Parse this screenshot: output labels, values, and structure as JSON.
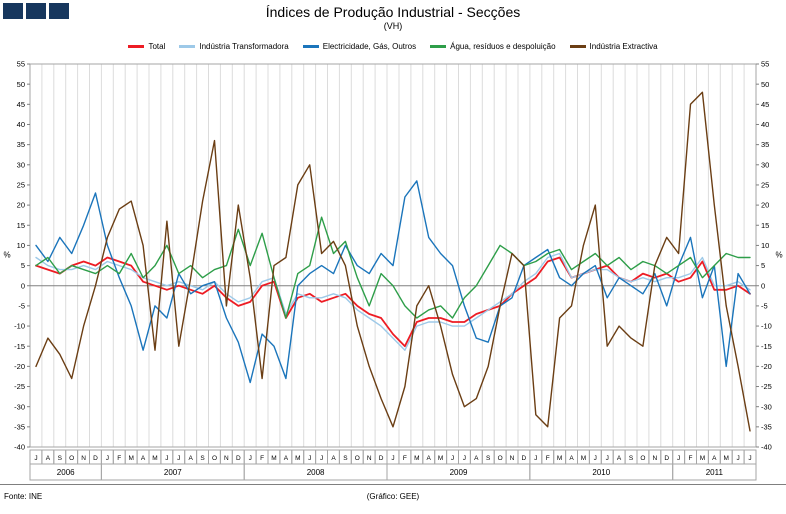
{
  "header": {
    "title": "Índices de Produção Industrial - Secções",
    "subtitle": "(VH)",
    "logo_color": "#17375e"
  },
  "footer": {
    "source": "Fonte: INE",
    "credit": "(Gráfico: GEE)"
  },
  "chart_data": {
    "type": "line",
    "title": "Índices de Produção Industrial - Secções",
    "subtitle": "(VH)",
    "ylabel_left": "%",
    "ylabel_right": "%",
    "ylim": [
      -40,
      55
    ],
    "ytick_step": 5,
    "grid": "vertical-monthly",
    "legend_position": "top",
    "month_labels": [
      "J",
      "A",
      "S",
      "O",
      "N",
      "D",
      "J",
      "F",
      "M",
      "A",
      "M",
      "J",
      "J",
      "A",
      "S",
      "O",
      "N",
      "D",
      "J",
      "F",
      "M",
      "A",
      "M",
      "J",
      "J",
      "A",
      "S",
      "O",
      "N",
      "D",
      "J",
      "F",
      "M",
      "A",
      "M",
      "J",
      "J",
      "A",
      "S",
      "O",
      "N",
      "D",
      "J",
      "F",
      "M",
      "A",
      "M",
      "J",
      "J",
      "A",
      "S",
      "O",
      "N",
      "D",
      "J",
      "F",
      "M",
      "A",
      "M",
      "J",
      "J"
    ],
    "year_groups": [
      {
        "label": "2006",
        "start": 0,
        "count": 6
      },
      {
        "label": "2007",
        "start": 6,
        "count": 12
      },
      {
        "label": "2008",
        "start": 18,
        "count": 12
      },
      {
        "label": "2009",
        "start": 30,
        "count": 12
      },
      {
        "label": "2010",
        "start": 42,
        "count": 12
      },
      {
        "label": "2011",
        "start": 54,
        "count": 7
      }
    ],
    "series": [
      {
        "name": "Total",
        "color": "#ed1c24",
        "values": [
          5,
          4,
          3,
          5,
          6,
          5,
          7,
          6,
          5,
          1,
          0,
          -1,
          0,
          -1,
          -2,
          0,
          -3,
          -5,
          -4,
          0,
          1,
          -8,
          -3,
          -2,
          -4,
          -3,
          -2,
          -5,
          -7,
          -8,
          -12,
          -15,
          -9,
          -8,
          -8,
          -9,
          -9,
          -7,
          -6,
          -5,
          -2,
          0,
          2,
          6,
          7,
          2,
          3,
          4,
          5,
          2,
          1,
          3,
          2,
          3,
          1,
          2,
          6,
          -1,
          -1,
          0,
          -2
        ]
      },
      {
        "name": "Indústria Transformadora",
        "color": "#9dc9e8",
        "values": [
          7,
          5,
          4,
          4,
          5,
          4,
          6,
          5,
          4,
          2,
          1,
          0,
          1,
          0,
          -1,
          1,
          -2,
          -4,
          -3,
          1,
          2,
          -7,
          -2,
          -3,
          -3,
          -2,
          -3,
          -6,
          -8,
          -10,
          -13,
          -16,
          -10,
          -9,
          -9,
          -10,
          -10,
          -8,
          -6,
          -4,
          -2,
          1,
          3,
          7,
          8,
          2,
          3,
          4,
          4,
          2,
          1,
          2,
          1,
          2,
          2,
          3,
          7,
          0,
          0,
          1,
          -1
        ]
      },
      {
        "name": "Electricidade, Gás, Outros",
        "color": "#1b75bb",
        "values": [
          10,
          6,
          12,
          8,
          15,
          23,
          10,
          2,
          -5,
          -16,
          -5,
          -8,
          3,
          -2,
          0,
          1,
          -8,
          -14,
          -24,
          -12,
          -15,
          -23,
          0,
          3,
          5,
          3,
          10,
          5,
          3,
          8,
          5,
          22,
          26,
          12,
          8,
          5,
          -5,
          -13,
          -14,
          -5,
          -3,
          5,
          7,
          9,
          2,
          0,
          3,
          5,
          -3,
          2,
          0,
          -2,
          3,
          -5,
          5,
          12,
          -3,
          5,
          -20,
          3,
          -2
        ]
      },
      {
        "name": "Água, resíduos e despoluição",
        "color": "#2e9e49",
        "values": [
          5,
          7,
          3,
          5,
          4,
          3,
          5,
          3,
          8,
          2,
          5,
          10,
          3,
          5,
          2,
          4,
          5,
          14,
          5,
          13,
          2,
          -8,
          3,
          5,
          17,
          8,
          11,
          2,
          -5,
          3,
          0,
          -5,
          -8,
          -6,
          -5,
          -8,
          -3,
          0,
          5,
          10,
          8,
          5,
          6,
          8,
          9,
          4,
          6,
          8,
          5,
          7,
          4,
          6,
          5,
          3,
          5,
          7,
          2,
          5,
          8,
          7,
          7
        ]
      },
      {
        "name": "Indústria Extractiva",
        "color": "#6b3e14",
        "values": [
          -20,
          -13,
          -17,
          -23,
          -10,
          0,
          12,
          19,
          21,
          10,
          -16,
          16,
          -15,
          2,
          21,
          36,
          -5,
          20,
          2,
          -23,
          5,
          7,
          25,
          30,
          8,
          11,
          5,
          -10,
          -20,
          -28,
          -35,
          -25,
          -5,
          0,
          -10,
          -22,
          -30,
          -28,
          -20,
          -5,
          8,
          5,
          -32,
          -35,
          -8,
          -5,
          10,
          20,
          -15,
          -10,
          -13,
          -15,
          5,
          12,
          8,
          45,
          48,
          20,
          -5,
          -20,
          -36
        ]
      }
    ]
  }
}
